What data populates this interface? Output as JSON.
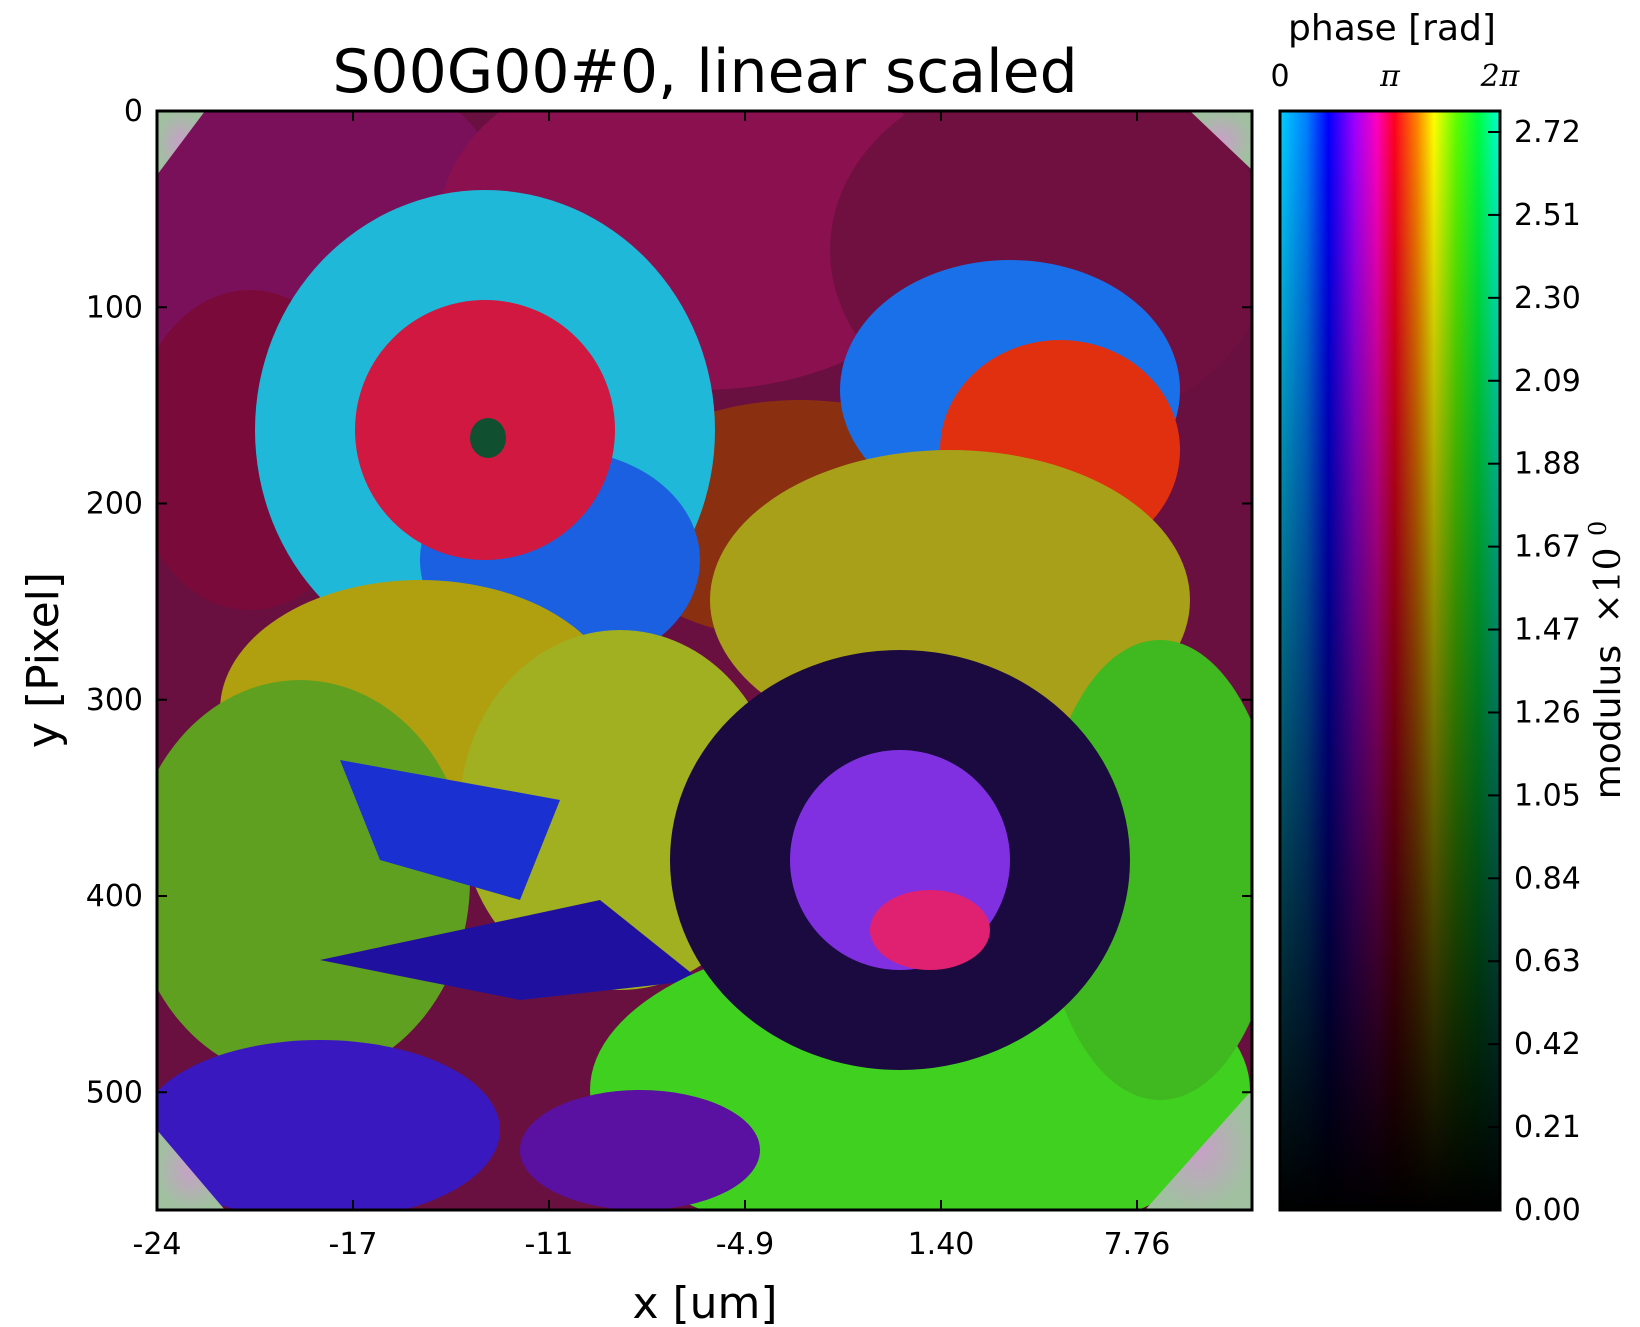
{
  "chart_data": {
    "type": "heatmap",
    "title": "S00G00#0, linear scaled",
    "xlabel": "x [um]",
    "ylabel": "y [Pixel]",
    "x_ticks": [
      "-24",
      "-17",
      "-11",
      "-4.9",
      "1.40",
      "7.76"
    ],
    "y_ticks": [
      "0",
      "100",
      "200",
      "300",
      "400",
      "500"
    ],
    "ylim": [
      560,
      0
    ],
    "colorbar": {
      "label": "modulus",
      "multiplier": "×10",
      "multiplier_exp": "0",
      "ticks": [
        "0.00",
        "0.21",
        "0.42",
        "0.63",
        "0.84",
        "1.05",
        "1.26",
        "1.47",
        "1.67",
        "1.88",
        "2.09",
        "2.30",
        "2.51",
        "2.72"
      ],
      "range": [
        0.0,
        2.8
      ],
      "phase_title": "phase [rad]",
      "phase_ticks": [
        "0",
        "π",
        "2π"
      ],
      "phase_range": [
        0,
        6.2832
      ]
    },
    "colors": {
      "phase_0": "#00d8ff",
      "phase_blue": "#0000ff",
      "phase_magenta": "#ff00ff",
      "phase_red": "#ff0000",
      "phase_yellow": "#ffff00",
      "phase_green": "#00ff40",
      "phase_2pi": "#00ffd8"
    },
    "image_description": "complex-valued reconstruction shown as phase-hue / modulus-brightness image of a flower pattern"
  }
}
